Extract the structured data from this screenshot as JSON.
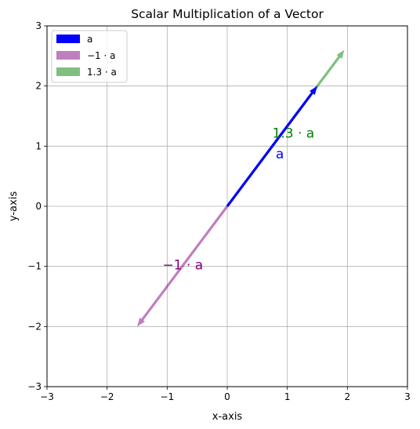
{
  "chart_data": {
    "type": "vector",
    "title": "Scalar Multiplication of a Vector",
    "xlabel": "x-axis",
    "ylabel": "y-axis",
    "xlim": [
      -3,
      3
    ],
    "ylim": [
      -3,
      3
    ],
    "grid": true,
    "xticks": [
      "−3",
      "−2",
      "−1",
      "0",
      "1",
      "2",
      "3"
    ],
    "yticks": [
      "−3",
      "−2",
      "−1",
      "0",
      "1",
      "2",
      "3"
    ],
    "legend_position": "top-left",
    "series": [
      {
        "name": "a",
        "color": "#0000ff",
        "alpha": 1.0,
        "start": [
          0,
          0
        ],
        "end": [
          1.5,
          2.0
        ],
        "annotation": "a"
      },
      {
        "name": "−1 · a",
        "color": "#800080",
        "alpha": 0.5,
        "start": [
          0,
          0
        ],
        "end": [
          -1.5,
          -2.0
        ],
        "annotation": "−1 · a"
      },
      {
        "name": "1.3 · a",
        "color": "#008000",
        "alpha": 0.5,
        "start": [
          0,
          0
        ],
        "end": [
          1.95,
          2.6
        ],
        "annotation": "1.3 · a"
      }
    ]
  }
}
